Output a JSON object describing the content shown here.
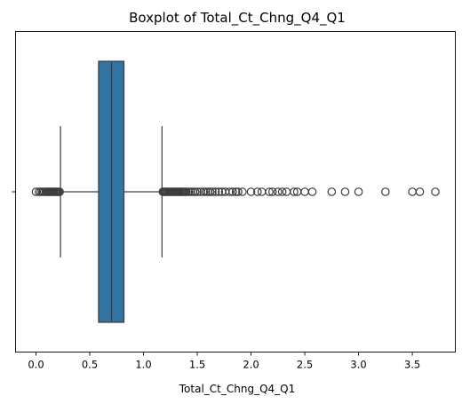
{
  "chart_data": {
    "type": "box",
    "title": "Boxplot of Total_Ct_Chng_Q4_Q1",
    "xlabel": "Total_Ct_Chng_Q4_Q1",
    "ylabel": "",
    "xlim": [
      -0.19,
      3.9
    ],
    "x_ticks": [
      0.0,
      0.5,
      1.0,
      1.5,
      2.0,
      2.5,
      3.0,
      3.5
    ],
    "x_tick_labels": [
      "0.0",
      "0.5",
      "1.0",
      "1.5",
      "2.0",
      "2.5",
      "3.0",
      "3.5"
    ],
    "grid": false,
    "box_color": "#3274a1",
    "line_color": "#3d3d3d",
    "outlier_color": "#3d3d3d",
    "box": {
      "whisker_low": 0.228,
      "q1": 0.582,
      "median": 0.702,
      "q3": 0.818,
      "whisker_high": 1.172
    },
    "outliers_low": [
      0.0,
      0.028,
      0.045,
      0.06,
      0.075,
      0.09,
      0.1,
      0.11,
      0.12,
      0.13,
      0.14,
      0.15,
      0.16,
      0.17,
      0.18,
      0.19,
      0.2,
      0.21,
      0.22
    ],
    "outliers_high": [
      1.18,
      1.19,
      1.2,
      1.21,
      1.22,
      1.23,
      1.24,
      1.25,
      1.26,
      1.27,
      1.28,
      1.29,
      1.3,
      1.31,
      1.32,
      1.33,
      1.34,
      1.35,
      1.36,
      1.37,
      1.38,
      1.39,
      1.4,
      1.42,
      1.44,
      1.46,
      1.48,
      1.5,
      1.53,
      1.56,
      1.58,
      1.6,
      1.62,
      1.64,
      1.67,
      1.7,
      1.73,
      1.76,
      1.8,
      1.83,
      1.86,
      1.88,
      1.92,
      2.0,
      2.06,
      2.1,
      2.17,
      2.2,
      2.25,
      2.29,
      2.33,
      2.4,
      2.43,
      2.5,
      2.57,
      2.75,
      2.875,
      3.0,
      3.25,
      3.5,
      3.57,
      3.714
    ]
  }
}
